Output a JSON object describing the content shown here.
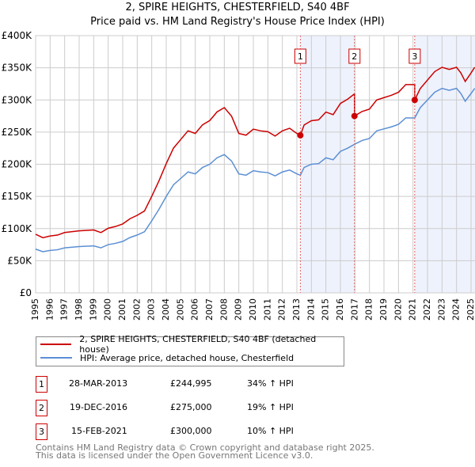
{
  "chart_data": {
    "type": "line",
    "title": "2, SPIRE HEIGHTS, CHESTERFIELD, S40 4BF",
    "subtitle": "Price paid vs. HM Land Registry's House Price Index (HPI)",
    "xlim": [
      1995,
      2025.3
    ],
    "ylim": [
      0,
      400000
    ],
    "x_ticks": [
      "1995",
      "1996",
      "1997",
      "1998",
      "1999",
      "2000",
      "2001",
      "2002",
      "2003",
      "2004",
      "2005",
      "2006",
      "2007",
      "2008",
      "2009",
      "2010",
      "2011",
      "2012",
      "2013",
      "2014",
      "2015",
      "2016",
      "2017",
      "2018",
      "2019",
      "2020",
      "2021",
      "2022",
      "2023",
      "2024",
      "2025"
    ],
    "y_ticks": [
      {
        "v": 0,
        "label": "£0"
      },
      {
        "v": 50000,
        "label": "£50K"
      },
      {
        "v": 100000,
        "label": "£100K"
      },
      {
        "v": 150000,
        "label": "£150K"
      },
      {
        "v": 200000,
        "label": "£200K"
      },
      {
        "v": 250000,
        "label": "£250K"
      },
      {
        "v": 300000,
        "label": "£300K"
      },
      {
        "v": 350000,
        "label": "£350K"
      },
      {
        "v": 400000,
        "label": "£400K"
      }
    ],
    "grid": true,
    "colors": {
      "price": "#cc0000",
      "hpi": "#5b8fd4",
      "shade": "#eef2fc"
    },
    "hpi_series": {
      "name": "HPI: Average price, detached house, Chesterfield",
      "x": [
        1995,
        1995.5,
        1996,
        1996.5,
        1997,
        1998,
        1999,
        1999.5,
        2000,
        2000.5,
        2001,
        2001.5,
        2002,
        2002.5,
        2003,
        2003.5,
        2004,
        2004.5,
        2005,
        2005.5,
        2006,
        2006.5,
        2007,
        2007.5,
        2008,
        2008.5,
        2009,
        2009.5,
        2010,
        2010.5,
        2011,
        2011.5,
        2012,
        2012.5,
        2013,
        2013.24,
        2013.5,
        2014,
        2014.5,
        2015,
        2015.5,
        2016,
        2016.5,
        2016.97,
        2017.5,
        2018,
        2018.5,
        2019,
        2019.5,
        2020,
        2020.5,
        2021.12,
        2021.5,
        2022,
        2022.5,
        2023,
        2023.5,
        2024,
        2024.3,
        2024.6,
        2025,
        2025.25
      ],
      "y": [
        68000,
        64000,
        66000,
        67000,
        70000,
        72000,
        73000,
        70000,
        75000,
        77000,
        80000,
        86000,
        90000,
        95000,
        112000,
        130000,
        150000,
        168000,
        178000,
        188000,
        185000,
        195000,
        200000,
        210000,
        215000,
        205000,
        185000,
        183000,
        190000,
        188000,
        187000,
        182000,
        188000,
        191000,
        185000,
        183000,
        195000,
        200000,
        201000,
        210000,
        207000,
        220000,
        225000,
        231000,
        237000,
        240000,
        252000,
        255000,
        258000,
        262000,
        272000,
        272000,
        288000,
        300000,
        312000,
        318000,
        315000,
        318000,
        310000,
        298000,
        310000,
        318000
      ]
    },
    "price_series": {
      "name": "2, SPIRE HEIGHTS, CHESTERFIELD, S40 4BF (detached house)",
      "initial_ratio": 1.34
    },
    "sales": [
      {
        "id": "1",
        "x": 2013.24,
        "date": "28-MAR-2013",
        "price": 244995,
        "price_label": "£244,995",
        "hpi_diff": "34% ↑ HPI"
      },
      {
        "id": "2",
        "x": 2016.97,
        "date": "19-DEC-2016",
        "price": 275000,
        "price_label": "£275,000",
        "hpi_diff": "19% ↑ HPI"
      },
      {
        "id": "3",
        "x": 2021.12,
        "date": "15-FEB-2021",
        "price": 300000,
        "price_label": "£300,000",
        "hpi_diff": "10% ↑ HPI"
      }
    ],
    "legend_placement": "below"
  },
  "footer": {
    "line1": "Contains HM Land Registry data © Crown copyright and database right 2025.",
    "line2": "This data is licensed under the Open Government Licence v3.0."
  }
}
